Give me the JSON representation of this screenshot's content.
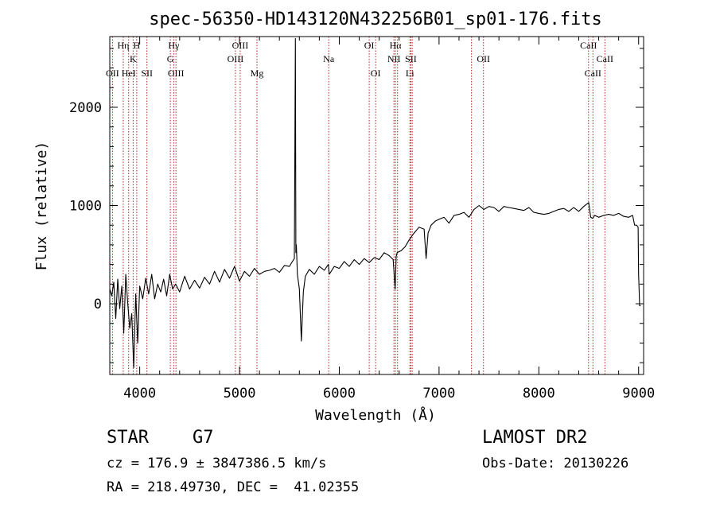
{
  "chart_data": {
    "type": "line",
    "title": "spec-56350-HD143120N432256B01_sp01-176.fits",
    "xlabel": "Wavelength (Å)",
    "ylabel": "Flux (relative)",
    "xlim": [
      3700,
      9050
    ],
    "ylim": [
      -720,
      2720
    ],
    "x_ticks": [
      4000,
      5000,
      6000,
      7000,
      8000,
      9000
    ],
    "y_ticks": [
      0,
      1000,
      2000
    ],
    "grid": false,
    "line_color": "#000000",
    "marker_color": "#b22222",
    "line_markers": [
      {
        "x": 3727,
        "label": "OII",
        "row": 3
      },
      {
        "x": 3835,
        "label": "Hη",
        "row": 1
      },
      {
        "x": 3889,
        "label": "HeI",
        "row": 3
      },
      {
        "x": 3934,
        "label": "K",
        "row": 2
      },
      {
        "x": 3970,
        "label": "H",
        "row": 1
      },
      {
        "x": 4072,
        "label": "SII",
        "row": 3
      },
      {
        "x": 4307,
        "label": "G",
        "row": 2
      },
      {
        "x": 4341,
        "label": "Hγ",
        "row": 1
      },
      {
        "x": 4363,
        "label": "OIII",
        "row": 3
      },
      {
        "x": 4959,
        "label": "OIII",
        "row": 2
      },
      {
        "x": 5007,
        "label": "OIII",
        "row": 1
      },
      {
        "x": 5175,
        "label": "Mg",
        "row": 3
      },
      {
        "x": 5894,
        "label": "Na",
        "row": 2
      },
      {
        "x": 6300,
        "label": "OI",
        "row": 1
      },
      {
        "x": 6364,
        "label": "OI",
        "row": 3
      },
      {
        "x": 6548,
        "label": "NII",
        "row": 2
      },
      {
        "x": 6563,
        "label": "Hα",
        "row": 1
      },
      {
        "x": 6584,
        "label": "",
        "row": 0
      },
      {
        "x": 6708,
        "label": "Li",
        "row": 3
      },
      {
        "x": 6717,
        "label": "SII",
        "row": 2
      },
      {
        "x": 6731,
        "label": "",
        "row": 0
      },
      {
        "x": 7325,
        "label": "",
        "row": 0
      },
      {
        "x": 7445,
        "label": "OII",
        "row": 2
      },
      {
        "x": 8498,
        "label": "CaII",
        "row": 1
      },
      {
        "x": 8542,
        "label": "CaII",
        "row": 3
      },
      {
        "x": 8662,
        "label": "CaII",
        "row": 2
      }
    ],
    "series": [
      {
        "x": [
          3700,
          3720,
          3740,
          3760,
          3780,
          3800,
          3820,
          3840,
          3860,
          3880,
          3900,
          3920,
          3940,
          3960,
          3980,
          4000,
          4030,
          4060,
          4090,
          4120,
          4150,
          4180,
          4210,
          4240,
          4270,
          4300,
          4330,
          4360,
          4400,
          4450,
          4500,
          4550,
          4600,
          4650,
          4700,
          4750,
          4800,
          4850,
          4900,
          4950,
          5000,
          5050,
          5100,
          5150,
          5200,
          5250,
          5300,
          5350,
          5400,
          5450,
          5500,
          5530,
          5550,
          5560,
          5565,
          5570,
          5580,
          5600,
          5620,
          5640,
          5660,
          5700,
          5750,
          5800,
          5850,
          5890,
          5900,
          5950,
          6000,
          6050,
          6100,
          6150,
          6200,
          6250,
          6300,
          6350,
          6400,
          6450,
          6500,
          6540,
          6560,
          6570,
          6580,
          6620,
          6660,
          6700,
          6750,
          6800,
          6850,
          6870,
          6890,
          6920,
          6960,
          7000,
          7050,
          7100,
          7150,
          7200,
          7250,
          7300,
          7350,
          7400,
          7450,
          7500,
          7550,
          7600,
          7650,
          7700,
          7750,
          7800,
          7850,
          7900,
          7950,
          8000,
          8050,
          8100,
          8150,
          8200,
          8250,
          8300,
          8350,
          8400,
          8450,
          8500,
          8520,
          8540,
          8560,
          8600,
          8650,
          8700,
          8750,
          8800,
          8850,
          8900,
          8940,
          8960,
          8980,
          8995,
          9000,
          9010,
          9020
        ],
        "y": [
          150,
          80,
          220,
          -150,
          250,
          -50,
          180,
          -300,
          300,
          0,
          -250,
          -100,
          -650,
          100,
          -400,
          180,
          50,
          260,
          100,
          300,
          50,
          200,
          120,
          250,
          80,
          300,
          150,
          200,
          120,
          280,
          150,
          240,
          160,
          270,
          200,
          330,
          220,
          350,
          260,
          380,
          230,
          330,
          280,
          360,
          300,
          330,
          340,
          360,
          320,
          390,
          380,
          430,
          460,
          2700,
          520,
          600,
          300,
          150,
          -380,
          120,
          280,
          350,
          300,
          380,
          340,
          400,
          300,
          380,
          360,
          430,
          380,
          450,
          400,
          460,
          420,
          470,
          450,
          520,
          490,
          450,
          150,
          480,
          520,
          540,
          580,
          650,
          720,
          780,
          760,
          460,
          720,
          800,
          840,
          860,
          880,
          820,
          900,
          910,
          930,
          880,
          960,
          1000,
          960,
          990,
          980,
          940,
          990,
          980,
          970,
          960,
          950,
          980,
          930,
          920,
          910,
          920,
          940,
          960,
          970,
          940,
          980,
          940,
          990,
          1030,
          880,
          870,
          900,
          880,
          900,
          910,
          900,
          920,
          890,
          880,
          900,
          800,
          800,
          780,
          300,
          -20,
          -20
        ]
      }
    ]
  },
  "info": {
    "object_class": "STAR",
    "subclass": "G7",
    "survey": "LAMOST DR2",
    "redshift": "cz = 176.9 ± 3847386.5 km/s",
    "obs_date": "Obs-Date: 20130226",
    "coordinates": "RA = 218.49730, DEC =  41.02355"
  }
}
